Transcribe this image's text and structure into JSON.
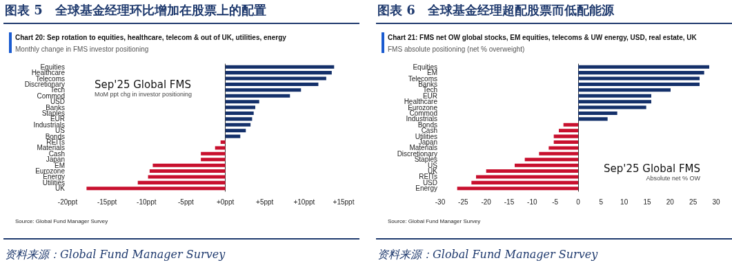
{
  "chart_data": [
    {
      "type": "bar",
      "orientation": "horizontal",
      "title": "图表 5　全球基金经理环比增加在股票上的配置",
      "subtitle": "Chart 20: Sep rotation to equities, healthcare, telecom & out of UK, utilities, energy",
      "annotations": [
        "Monthly change in FMS investor positioning",
        "Sep'25 Global FMS",
        "MoM ppt chg in investor positioning",
        "Source: Global Fund Manager Survey",
        "资料来源：Global Fund Manager Survey"
      ],
      "categories": [
        "Equities",
        "Healthcare",
        "Telecoms",
        "Discretionary",
        "Tech",
        "Commod",
        "USD",
        "Banks",
        "Staples",
        "EUR",
        "Industrials",
        "US",
        "Bonds",
        "REITs",
        "Materials",
        "Cash",
        "Japan",
        "EM",
        "Eurozone",
        "Energy",
        "Utilities",
        "UK"
      ],
      "values": [
        13.8,
        13.5,
        12.8,
        11.8,
        9.6,
        8.2,
        4.3,
        3.8,
        3.6,
        3.4,
        3.2,
        2.6,
        1.9,
        -0.6,
        -1.3,
        -3.1,
        -3.1,
        -9.2,
        -9.6,
        -9.8,
        -11.1,
        -17.6
      ],
      "colors": [
        "#14306a",
        "#14306a",
        "#14306a",
        "#14306a",
        "#14306a",
        "#14306a",
        "#14306a",
        "#14306a",
        "#14306a",
        "#14306a",
        "#14306a",
        "#14306a",
        "#14306a",
        "#c8102e",
        "#c8102e",
        "#c8102e",
        "#c8102e",
        "#c8102e",
        "#c8102e",
        "#c8102e",
        "#c8102e",
        "#c8102e"
      ],
      "xlim": [
        -20,
        15
      ],
      "xticks": [
        {
          "value": -20,
          "label": "-20ppt"
        },
        {
          "value": -15,
          "label": "-15ppt"
        },
        {
          "value": -10,
          "label": "-10ppt"
        },
        {
          "value": -5,
          "label": "-5ppt"
        },
        {
          "value": 0,
          "label": "+0ppt"
        },
        {
          "value": 5,
          "label": "+5ppt"
        },
        {
          "value": 10,
          "label": "+10ppt"
        },
        {
          "value": 15,
          "label": "+15ppt"
        }
      ]
    },
    {
      "type": "bar",
      "orientation": "horizontal",
      "title": "图表 6　全球基金经理超配股票而低配能源",
      "subtitle": "Chart 21: FMS net OW global stocks, EM equities, telecoms & UW energy, USD, real estate, UK",
      "annotations": [
        "FMS absolute positioning (net % overweight)",
        "Sep'25 Global FMS",
        "Absolute net % OW",
        "Source: Global Fund Manager Survey",
        "资料来源：Global Fund Manager Survey"
      ],
      "categories": [
        "Equities",
        "EM",
        "Telecoms",
        "Banks",
        "Tech",
        "EUR",
        "Healthcare",
        "Eurozone",
        "Commod",
        "Industrials",
        "Bonds",
        "Cash",
        "Utilities",
        "Japan",
        "Materials",
        "Discretionary",
        "Staples",
        "US",
        "UK",
        "REITs",
        "USD",
        "Energy"
      ],
      "values": [
        28.5,
        27.4,
        26.4,
        26.4,
        20.1,
        15.9,
        15.9,
        14.8,
        8.5,
        6.4,
        -3.2,
        -4.2,
        -5.3,
        -5.3,
        -6.4,
        -8.5,
        -11.6,
        -13.8,
        -20,
        -22.2,
        -23.2,
        -26.3
      ],
      "colors": [
        "#14306a",
        "#14306a",
        "#14306a",
        "#14306a",
        "#14306a",
        "#14306a",
        "#14306a",
        "#14306a",
        "#14306a",
        "#14306a",
        "#c8102e",
        "#c8102e",
        "#c8102e",
        "#c8102e",
        "#c8102e",
        "#c8102e",
        "#c8102e",
        "#c8102e",
        "#c8102e",
        "#c8102e",
        "#c8102e",
        "#c8102e"
      ],
      "xlim": [
        -30,
        30
      ],
      "xticks": [
        -30,
        -25,
        -20,
        -15,
        -10,
        -5,
        0,
        5,
        10,
        15,
        20,
        25,
        30
      ]
    }
  ]
}
